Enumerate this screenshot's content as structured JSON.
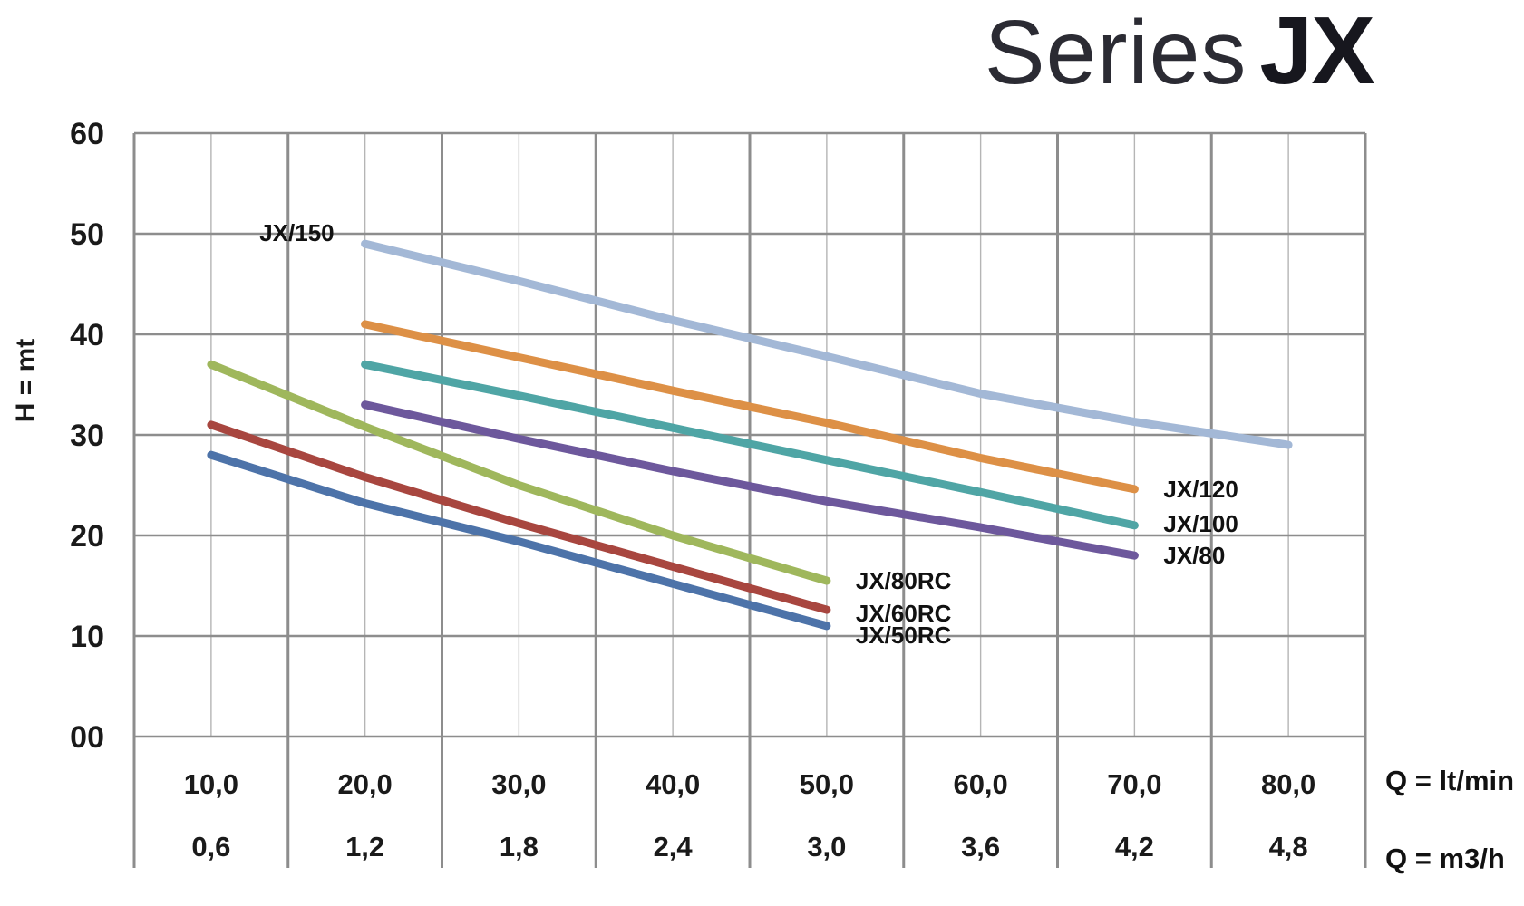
{
  "title": {
    "light": "Series",
    "bold": "JX"
  },
  "chart_data": {
    "type": "line",
    "title": "Series JX",
    "grid": true,
    "y_axis": {
      "label": "H = mt",
      "range": [
        0,
        60
      ],
      "tick_values": [
        60,
        50,
        40,
        30,
        20,
        10,
        0
      ],
      "tick_labels": [
        "60",
        "50",
        "40",
        "30",
        "20",
        "10",
        "00"
      ]
    },
    "x_axis": {
      "range": [
        5,
        85
      ],
      "tick_values": [
        10,
        20,
        30,
        40,
        50,
        60,
        70,
        80
      ],
      "rows": [
        {
          "unit": "Q = lt/min",
          "labels": [
            "10,0",
            "20,0",
            "30,0",
            "40,0",
            "50,0",
            "60,0",
            "70,0",
            "80,0"
          ]
        },
        {
          "unit": "Q = m3/h",
          "labels": [
            "0,6",
            "1,2",
            "1,8",
            "2,4",
            "3,0",
            "3,6",
            "4,2",
            "4,8"
          ]
        }
      ]
    },
    "series": [
      {
        "name": "JX/150",
        "color": "#a3b8d6",
        "label_anchor": "start",
        "label_offset_y": 0,
        "points": [
          [
            20,
            49
          ],
          [
            30,
            45.3
          ],
          [
            40,
            41.4
          ],
          [
            50,
            37.8
          ],
          [
            60,
            34.1
          ],
          [
            70,
            31.3
          ],
          [
            80,
            29
          ]
        ]
      },
      {
        "name": "JX/120",
        "color": "#dd9046",
        "label_anchor": "end",
        "label_offset_y": 0,
        "points": [
          [
            20,
            41
          ],
          [
            30,
            37.7
          ],
          [
            40,
            34.4
          ],
          [
            50,
            31.2
          ],
          [
            60,
            27.7
          ],
          [
            70,
            24.6
          ]
        ]
      },
      {
        "name": "JX/100",
        "color": "#4fa5a5",
        "label_anchor": "end",
        "label_offset_y": -2,
        "points": [
          [
            20,
            37
          ],
          [
            30,
            33.9
          ],
          [
            40,
            30.7
          ],
          [
            50,
            27.5
          ],
          [
            60,
            24.3
          ],
          [
            70,
            21
          ]
        ]
      },
      {
        "name": "JX/80",
        "color": "#6d589c",
        "label_anchor": "end",
        "label_offset_y": 0,
        "points": [
          [
            20,
            33
          ],
          [
            30,
            29.6
          ],
          [
            40,
            26.4
          ],
          [
            50,
            23.4
          ],
          [
            60,
            20.8
          ],
          [
            70,
            18
          ]
        ]
      },
      {
        "name": "JX/80RC",
        "color": "#9fb75c",
        "label_anchor": "end",
        "label_offset_y": 0,
        "points": [
          [
            10,
            37
          ],
          [
            20,
            30.8
          ],
          [
            30,
            25
          ],
          [
            40,
            20
          ],
          [
            50,
            15.5
          ]
        ]
      },
      {
        "name": "JX/60RC",
        "color": "#a8463f",
        "label_anchor": "end",
        "label_offset_y": 4,
        "points": [
          [
            10,
            31
          ],
          [
            20,
            25.8
          ],
          [
            30,
            21.2
          ],
          [
            40,
            16.9
          ],
          [
            50,
            12.6
          ]
        ]
      },
      {
        "name": "JX/50RC",
        "color": "#4d73a9",
        "label_anchor": "end",
        "label_offset_y": 10,
        "points": [
          [
            10,
            28
          ],
          [
            20,
            23.2
          ],
          [
            30,
            19.4
          ],
          [
            40,
            15.2
          ],
          [
            50,
            11
          ]
        ]
      }
    ]
  }
}
